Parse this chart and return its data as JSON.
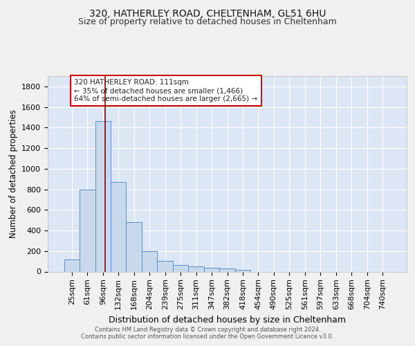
{
  "title1": "320, HATHERLEY ROAD, CHELTENHAM, GL51 6HU",
  "title2": "Size of property relative to detached houses in Cheltenham",
  "xlabel": "Distribution of detached houses by size in Cheltenham",
  "ylabel": "Number of detached properties",
  "categories": [
    "25sqm",
    "61sqm",
    "96sqm",
    "132sqm",
    "168sqm",
    "204sqm",
    "239sqm",
    "275sqm",
    "311sqm",
    "347sqm",
    "382sqm",
    "418sqm",
    "454sqm",
    "490sqm",
    "525sqm",
    "561sqm",
    "597sqm",
    "633sqm",
    "668sqm",
    "704sqm",
    "740sqm"
  ],
  "values": [
    120,
    800,
    1465,
    870,
    480,
    200,
    105,
    65,
    48,
    35,
    28,
    20,
    0,
    0,
    0,
    0,
    0,
    0,
    0,
    0,
    0
  ],
  "bar_color": "#c9d9ed",
  "bar_edge_color": "#5a8fc3",
  "red_line_index": 2.15,
  "annotation_text": "320 HATHERLEY ROAD: 111sqm\n← 35% of detached houses are smaller (1,466)\n64% of semi-detached houses are larger (2,665) →",
  "annotation_box_color": "#ffffff",
  "annotation_box_edge": "#cc0000",
  "ylim": [
    0,
    1900
  ],
  "yticks": [
    0,
    200,
    400,
    600,
    800,
    1000,
    1200,
    1400,
    1600,
    1800
  ],
  "background_color": "#dce6f5",
  "grid_color": "#ffffff",
  "footer_line1": "Contains HM Land Registry data © Crown copyright and database right 2024.",
  "footer_line2": "Contains public sector information licensed under the Open Government Licence v3.0.",
  "title1_fontsize": 10,
  "title2_fontsize": 9,
  "xlabel_fontsize": 9,
  "ylabel_fontsize": 8.5,
  "tick_fontsize": 8,
  "annotation_fontsize": 7.5,
  "footer_fontsize": 6,
  "fig_bg": "#f0f0f0"
}
